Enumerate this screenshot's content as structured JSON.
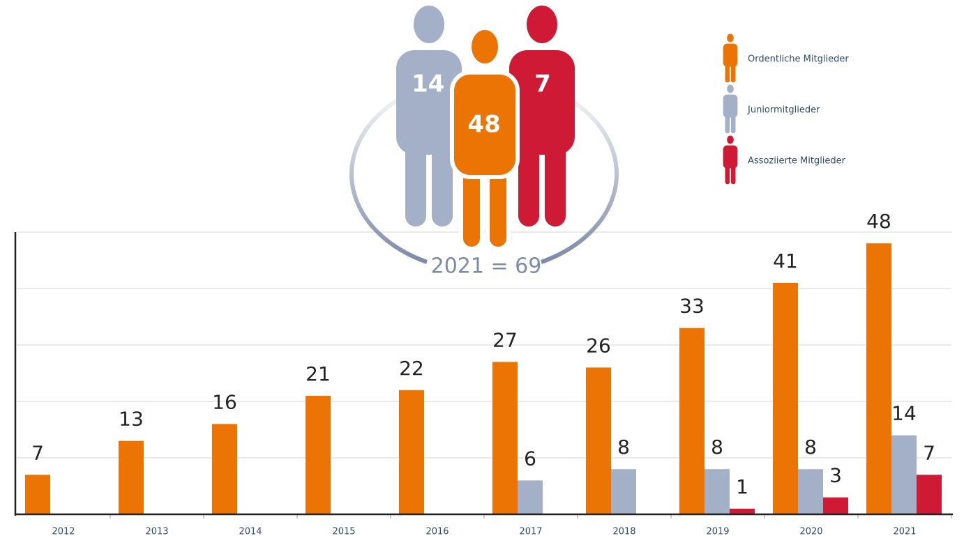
{
  "chart_data": {
    "type": "bar",
    "categories": [
      "2012",
      "2013",
      "2014",
      "2015",
      "2016",
      "2017",
      "2018",
      "2019",
      "2020",
      "2021"
    ],
    "series": [
      {
        "name": "Ordentliche Mitglieder",
        "color": "#ec7404",
        "values": [
          7,
          13,
          16,
          21,
          22,
          27,
          26,
          33,
          41,
          48
        ]
      },
      {
        "name": "Juniormitglieder",
        "color": "#a3b0c8",
        "values": [
          null,
          null,
          null,
          null,
          null,
          6,
          8,
          8,
          8,
          14
        ]
      },
      {
        "name": "Assoziierte Mitglieder",
        "color": "#cf1a35",
        "values": [
          null,
          null,
          null,
          null,
          null,
          null,
          null,
          1,
          3,
          7
        ]
      }
    ],
    "ylim": [
      0,
      50
    ],
    "yticks": [
      0,
      10,
      20,
      30,
      40,
      50
    ],
    "grid": true,
    "summary_label": "2021 = 69"
  }
}
